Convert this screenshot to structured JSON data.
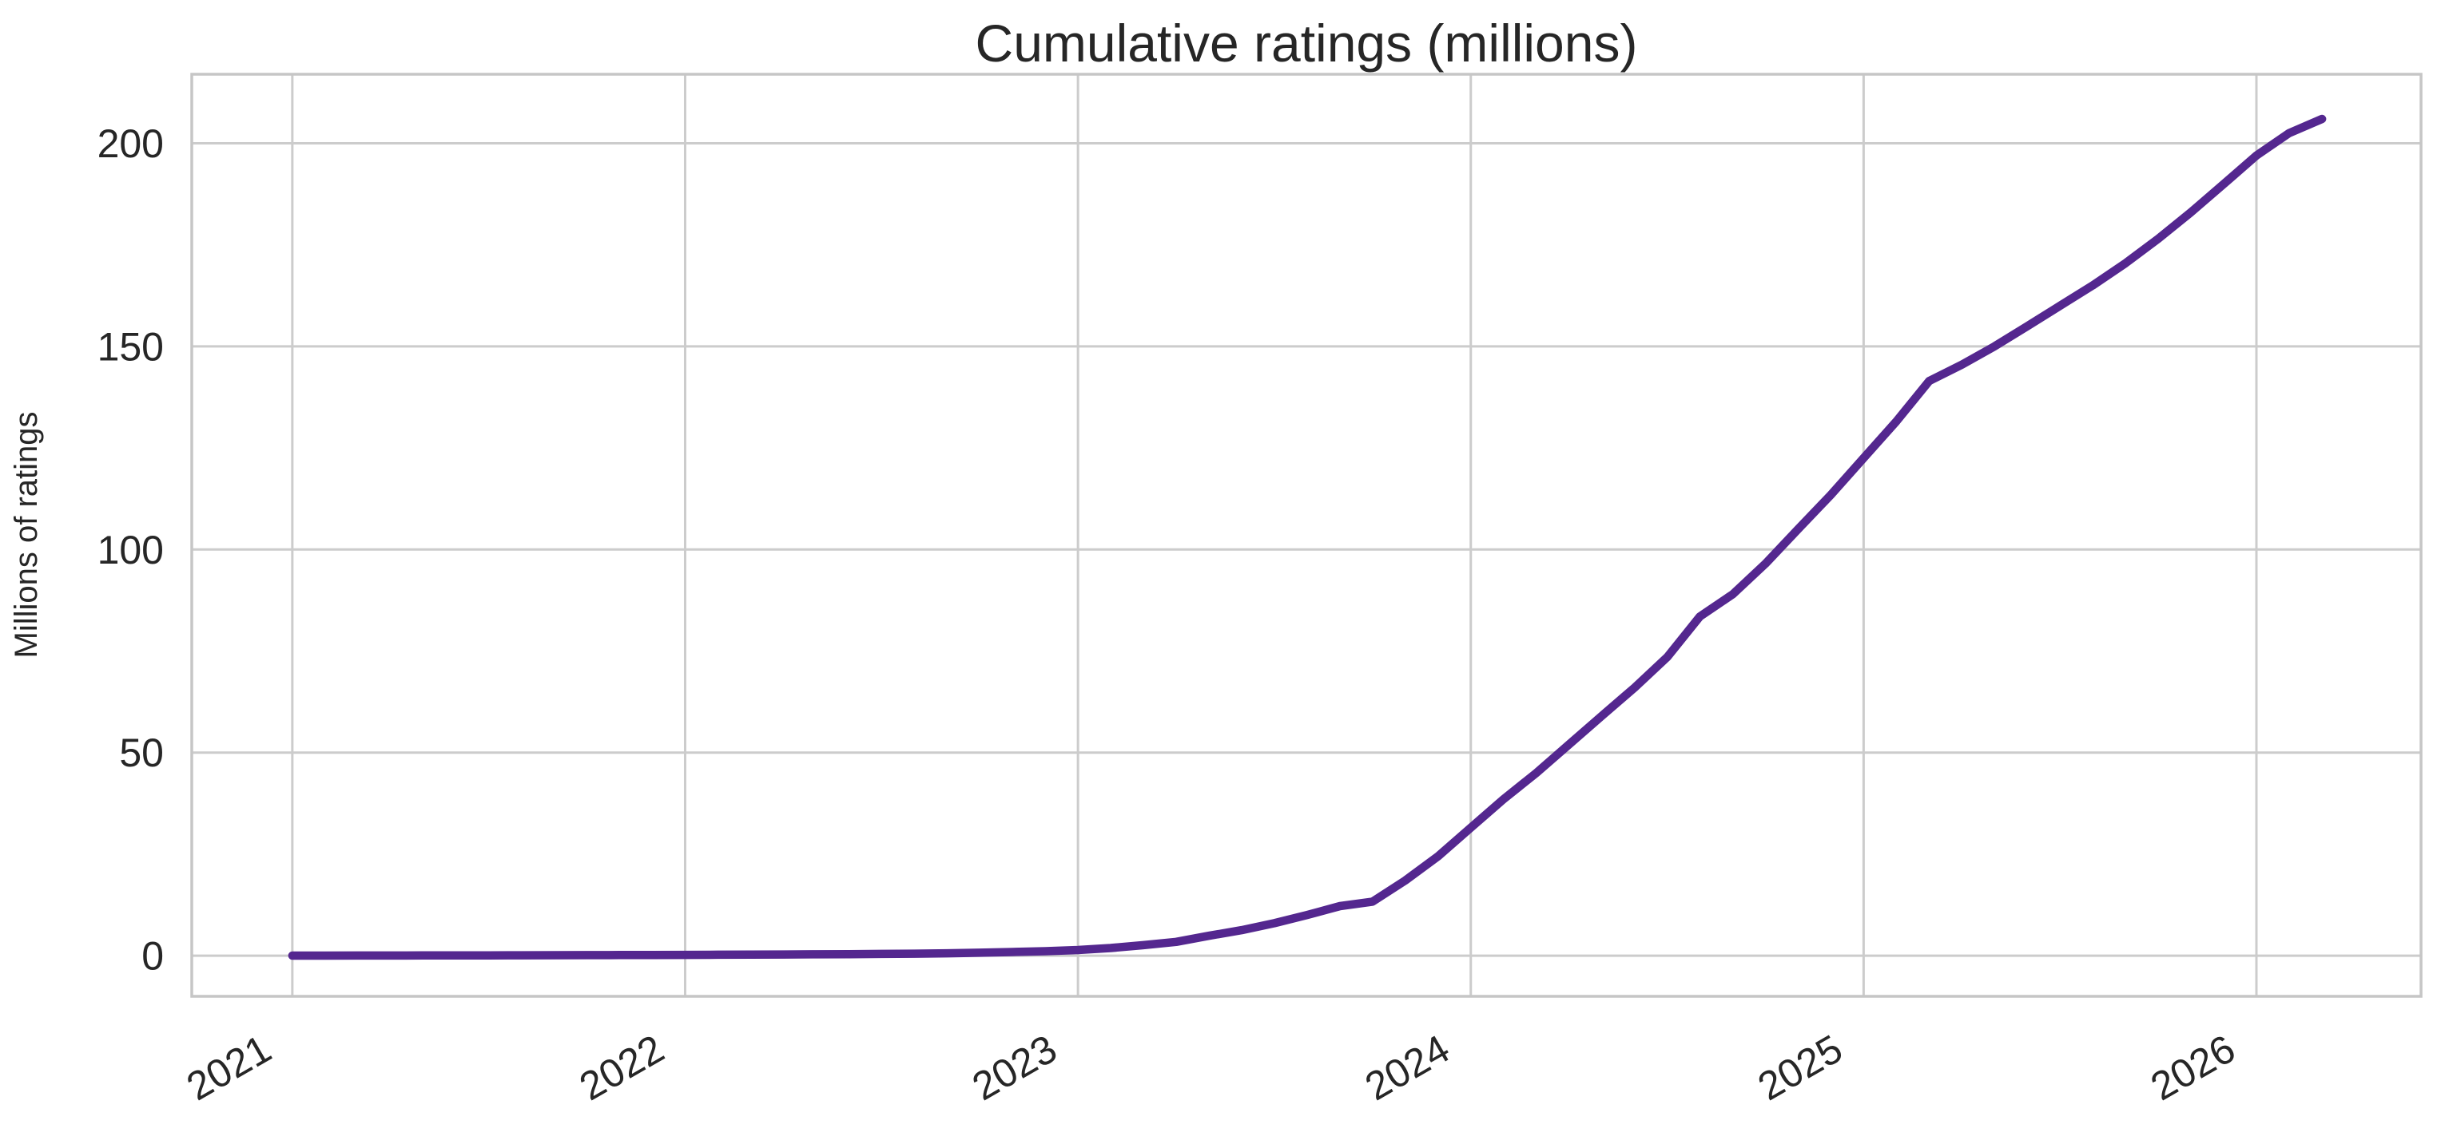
{
  "figure": {
    "background_color": "#ffffff",
    "text_color": "#262626",
    "grid_color": "#cccccc",
    "frame_color": "#c6c6c6"
  },
  "chart_data": {
    "type": "line",
    "title": "Cumulative ratings (millions)",
    "xlabel": "",
    "ylabel": "Millions of ratings",
    "grid": true,
    "legend": "none",
    "x_tick_labels": [
      "2021",
      "2022",
      "2023",
      "2024",
      "2025",
      "2026"
    ],
    "x_tick_years": [
      2021,
      2022,
      2023,
      2024,
      2025,
      2026
    ],
    "y_tick_labels": [
      "0",
      "50",
      "100",
      "150",
      "200"
    ],
    "y_ticks": [
      0,
      50,
      100,
      150,
      200
    ],
    "x_range_years": [
      2020.744,
      2026.419
    ],
    "y_range": [
      -10,
      217
    ],
    "line_color": "#54278f",
    "series": [
      {
        "name": "cumulative-ratings",
        "points": [
          [
            2021.0,
            0.02
          ],
          [
            2021.083,
            0.03
          ],
          [
            2021.167,
            0.04
          ],
          [
            2021.25,
            0.05
          ],
          [
            2021.333,
            0.06
          ],
          [
            2021.417,
            0.08
          ],
          [
            2021.5,
            0.09
          ],
          [
            2021.583,
            0.11
          ],
          [
            2021.667,
            0.12
          ],
          [
            2021.75,
            0.14
          ],
          [
            2021.833,
            0.16
          ],
          [
            2021.917,
            0.18
          ],
          [
            2022.0,
            0.2
          ],
          [
            2022.083,
            0.23
          ],
          [
            2022.167,
            0.26
          ],
          [
            2022.25,
            0.29
          ],
          [
            2022.333,
            0.33
          ],
          [
            2022.417,
            0.37
          ],
          [
            2022.5,
            0.43
          ],
          [
            2022.583,
            0.5
          ],
          [
            2022.667,
            0.6
          ],
          [
            2022.75,
            0.73
          ],
          [
            2022.833,
            0.9
          ],
          [
            2022.917,
            1.1
          ],
          [
            2023.0,
            1.4
          ],
          [
            2023.083,
            1.9
          ],
          [
            2023.167,
            2.6
          ],
          [
            2023.25,
            3.4
          ],
          [
            2023.333,
            4.9
          ],
          [
            2023.417,
            6.3
          ],
          [
            2023.5,
            8.0
          ],
          [
            2023.583,
            10.0
          ],
          [
            2023.667,
            12.2
          ],
          [
            2023.75,
            13.3
          ],
          [
            2023.833,
            18.5
          ],
          [
            2023.917,
            24.5
          ],
          [
            2024.0,
            31.5
          ],
          [
            2024.083,
            38.5
          ],
          [
            2024.167,
            45.0
          ],
          [
            2024.25,
            52.0
          ],
          [
            2024.333,
            59.0
          ],
          [
            2024.417,
            66.0
          ],
          [
            2024.5,
            73.5
          ],
          [
            2024.583,
            83.5
          ],
          [
            2024.667,
            89.0
          ],
          [
            2024.75,
            96.5
          ],
          [
            2024.833,
            105.0
          ],
          [
            2024.917,
            113.5
          ],
          [
            2025.0,
            122.5
          ],
          [
            2025.083,
            131.5
          ],
          [
            2025.167,
            141.5
          ],
          [
            2025.25,
            145.5
          ],
          [
            2025.333,
            150.0
          ],
          [
            2025.417,
            155.0
          ],
          [
            2025.5,
            160.0
          ],
          [
            2025.583,
            165.0
          ],
          [
            2025.667,
            170.5
          ],
          [
            2025.75,
            176.5
          ],
          [
            2025.833,
            183.0
          ],
          [
            2025.917,
            190.0
          ],
          [
            2026.0,
            197.0
          ],
          [
            2026.083,
            202.5
          ],
          [
            2026.167,
            206.0
          ]
        ]
      }
    ]
  }
}
